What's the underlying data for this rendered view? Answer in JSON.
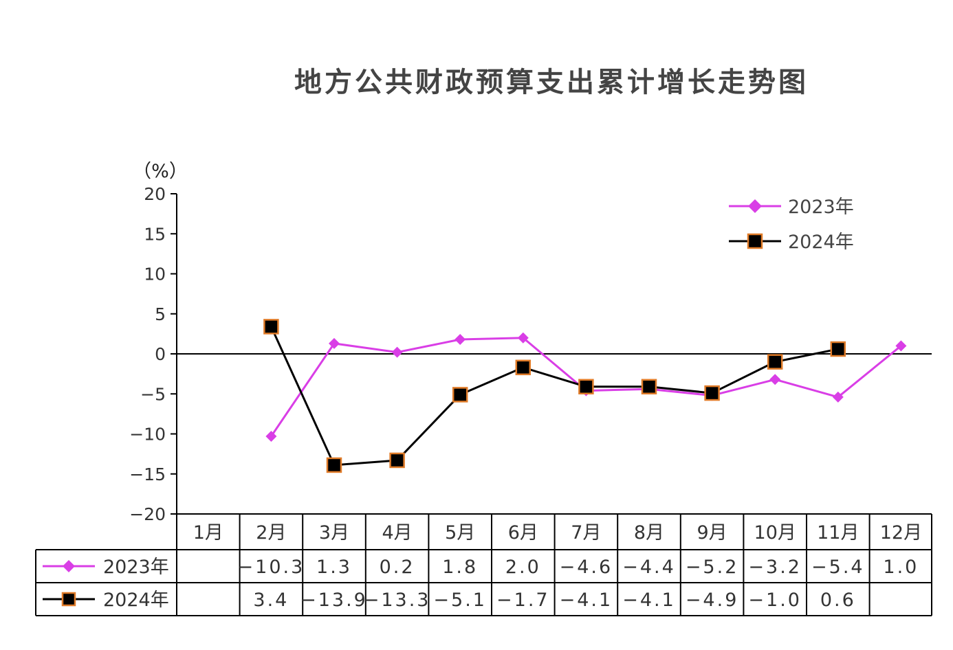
{
  "chart_data": {
    "type": "line",
    "title": "地方公共财政预算支出累计增长走势图",
    "ylabel": "（%）",
    "ylim": [
      -20,
      20
    ],
    "yticks": [
      20,
      15,
      10,
      5,
      0,
      -5,
      -10,
      -15,
      -20
    ],
    "categories": [
      "1月",
      "2月",
      "3月",
      "4月",
      "5月",
      "6月",
      "7月",
      "8月",
      "9月",
      "10月",
      "11月",
      "12月"
    ],
    "series": [
      {
        "name": "2023年",
        "color": "#d93ee6",
        "marker": "diamond",
        "values": [
          null,
          -10.3,
          1.3,
          0.2,
          1.8,
          2.0,
          -4.6,
          -4.4,
          -5.2,
          -3.2,
          -5.4,
          1.0
        ],
        "labels": [
          "",
          "−10.3",
          "1.3",
          "0.2",
          "1.8",
          "2.0",
          "−4.6",
          "−4.4",
          "−5.2",
          "−3.2",
          "−5.4",
          "1.0"
        ]
      },
      {
        "name": "2024年",
        "color": "#000000",
        "marker": "square",
        "marker_stroke": "#e07b28",
        "values": [
          null,
          3.4,
          -13.9,
          -13.3,
          -5.1,
          -1.7,
          -4.1,
          -4.1,
          -4.9,
          -1.0,
          0.6,
          null
        ],
        "labels": [
          "",
          "3.4",
          "−13.9",
          "−13.3",
          "−5.1",
          "−1.7",
          "−4.1",
          "−4.1",
          "−4.9",
          "−1.0",
          "0.6",
          ""
        ]
      }
    ],
    "legend": "top-right",
    "grid": false,
    "data_table": true
  }
}
